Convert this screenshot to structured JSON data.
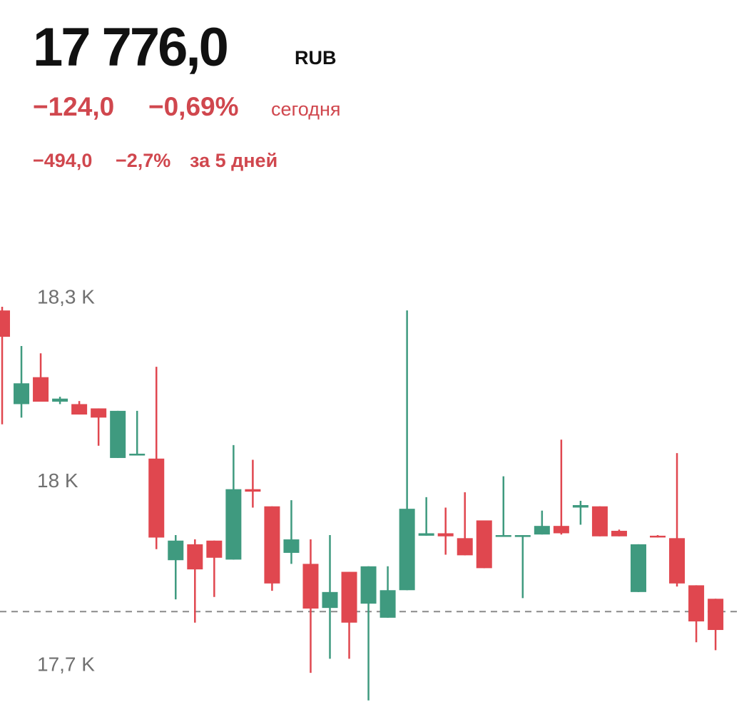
{
  "header": {
    "currency": "RUB",
    "today_change": "−124,0",
    "today_change_pct": "−0,69%",
    "today_label": "сегодня",
    "week_change": "−494,0",
    "week_change_pct": "−2,7%",
    "week_label": "за 5 дней"
  },
  "chart_data": {
    "type": "candlestick",
    "last_price": {
      "value": 17776,
      "label": "17 776,0"
    },
    "up_color": "#3f9a7f",
    "down_color": "#e0474f",
    "ylim": [
      17612,
      18309
    ],
    "yticks": [
      {
        "value": 18300,
        "label": "18,3 K"
      },
      {
        "value": 18000,
        "label": "18 K"
      },
      {
        "value": 17700,
        "label": "17,7 K"
      }
    ],
    "open": [
      18268,
      18115,
      18159,
      18119,
      18115,
      18108,
      18027,
      18031,
      18026,
      17860,
      17886,
      17892,
      17861,
      17976,
      17948,
      17872,
      17854,
      17782,
      17841,
      17789,
      17766,
      17811,
      17900,
      17904,
      17896,
      17925,
      17899,
      17898,
      17902,
      17916,
      17946,
      17948,
      17908,
      17808,
      17900,
      17896,
      17819,
      17797
    ],
    "high": [
      18274,
      18210,
      18198,
      18127,
      18120,
      18108,
      18104,
      18104,
      18176,
      17901,
      17894,
      17892,
      18048,
      18024,
      17948,
      17958,
      17894,
      17901,
      17841,
      17850,
      17850,
      18268,
      17963,
      17946,
      17971,
      17925,
      17997,
      17901,
      17941,
      18057,
      17957,
      17948,
      17910,
      17886,
      17901,
      18035,
      17819,
      17797
    ],
    "low": [
      18082,
      18093,
      18119,
      18115,
      18098,
      18047,
      18027,
      18031,
      17878,
      17796,
      17758,
      17800,
      17861,
      17946,
      17810,
      17854,
      17676,
      17699,
      17699,
      17631,
      17766,
      17811,
      17900,
      17869,
      17868,
      17847,
      17899,
      17798,
      17902,
      17902,
      17918,
      17899,
      17899,
      17808,
      17897,
      17817,
      17726,
      17713
    ],
    "close": [
      18225,
      18149,
      18119,
      18124,
      18098,
      18093,
      18104,
      18034,
      17897,
      17892,
      17845,
      17864,
      17976,
      17972,
      17822,
      17894,
      17781,
      17808,
      17758,
      17850,
      17811,
      17944,
      17904,
      17899,
      17868,
      17847,
      17901,
      17901,
      17916,
      17904,
      17950,
      17899,
      17899,
      17886,
      17898,
      17822,
      17760,
      17746
    ]
  }
}
